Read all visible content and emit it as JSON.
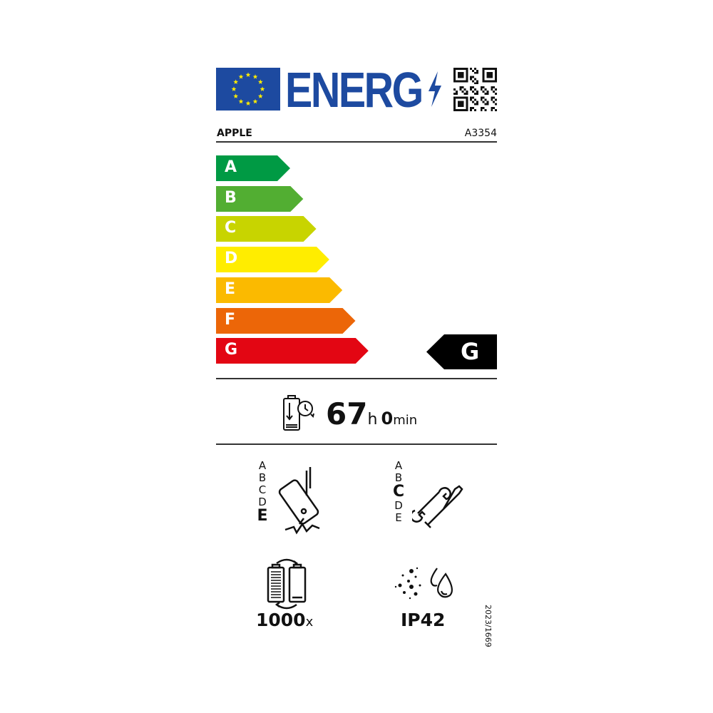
{
  "header": {
    "logo_text": "ENERG",
    "flag_icon": "eu-flag-icon",
    "qr_icon": "qr-code-icon"
  },
  "supplier": "APPLE",
  "model": "A3354",
  "scale": {
    "classes": [
      "A",
      "B",
      "C",
      "D",
      "E",
      "F",
      "G"
    ],
    "colors": [
      "#009a44",
      "#52ae32",
      "#c8d400",
      "#ffed00",
      "#fbba00",
      "#ec6608",
      "#e30613"
    ],
    "selected": "G"
  },
  "battery_endurance": {
    "hours": "67",
    "hours_unit": "h",
    "minutes": "0",
    "minutes_unit": "min"
  },
  "drop_resistance": {
    "classes": [
      "A",
      "B",
      "C",
      "D",
      "E"
    ],
    "selected": "E"
  },
  "repairability": {
    "classes": [
      "A",
      "B",
      "C",
      "D",
      "E"
    ],
    "selected": "C"
  },
  "battery_cycles": {
    "value": "1000",
    "unit": "x"
  },
  "ingress_protection": "IP42",
  "regulation": "2023/1669"
}
